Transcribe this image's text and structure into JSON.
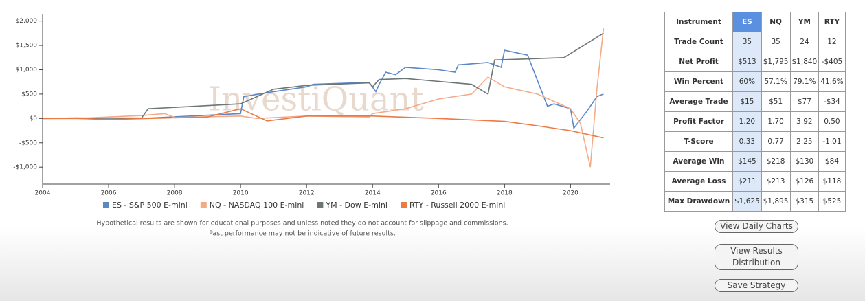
{
  "chart_data": {
    "type": "line",
    "watermark": "InvestiQuant",
    "xlim": [
      2004,
      2021.2
    ],
    "ylim": [
      -1350,
      2150
    ],
    "xticks": [
      2004,
      2006,
      2008,
      2010,
      2012,
      2014,
      2016,
      2018,
      2020
    ],
    "yticks": [
      {
        "value": 2000,
        "label": "$2,000"
      },
      {
        "value": 1500,
        "label": "$1,500"
      },
      {
        "value": 1000,
        "label": "$1,000"
      },
      {
        "value": 500,
        "label": "$500"
      },
      {
        "value": 0,
        "label": "$0"
      },
      {
        "value": -500,
        "label": "-$500"
      },
      {
        "value": -1000,
        "label": "-$1,000"
      }
    ],
    "legend": "bottom",
    "series": [
      {
        "name": "ES - S&P 500 E-mini",
        "color": "#5b87c7",
        "x": [
          2004,
          2005,
          2007,
          2010,
          2010.1,
          2011,
          2012,
          2012.2,
          2013,
          2013.9,
          2014.1,
          2014.2,
          2014.4,
          2014.7,
          2015,
          2016,
          2016.5,
          2016.6,
          2017.5,
          2017.9,
          2018,
          2018.7,
          2019.3,
          2019.5,
          2020,
          2020.1,
          2020.5,
          2020.8,
          2021
        ],
        "y": [
          0,
          10,
          0,
          100,
          450,
          550,
          650,
          700,
          720,
          740,
          550,
          700,
          950,
          900,
          1050,
          1000,
          950,
          1100,
          1150,
          1050,
          1400,
          1300,
          250,
          300,
          200,
          -200,
          150,
          450,
          500
        ]
      },
      {
        "name": "NQ - NASDAQ 100 E-mini",
        "color": "#f5aa86",
        "x": [
          2004,
          2005,
          2007,
          2007.7,
          2008,
          2010,
          2010.5,
          2012,
          2013.9,
          2014,
          2015,
          2016,
          2017,
          2017.5,
          2018,
          2019,
          2020,
          2020.3,
          2020.6,
          2020.8,
          2021
        ],
        "y": [
          0,
          0,
          60,
          100,
          20,
          50,
          0,
          50,
          30,
          100,
          200,
          400,
          500,
          850,
          650,
          500,
          200,
          -100,
          -1000,
          600,
          1850
        ]
      },
      {
        "name": "YM - Dow E-mini",
        "color": "#6b7675",
        "x": [
          2004,
          2007,
          2007.2,
          2010,
          2011,
          2012,
          2013.9,
          2014,
          2014.2,
          2015,
          2017,
          2017.5,
          2017.7,
          2019.8,
          2021
        ],
        "y": [
          0,
          10,
          200,
          300,
          600,
          680,
          730,
          650,
          800,
          820,
          700,
          500,
          1200,
          1250,
          1750
        ]
      },
      {
        "name": "RTY - Russell 2000 E-mini",
        "color": "#ec7a44",
        "x": [
          2004,
          2005,
          2006,
          2009,
          2010,
          2010.8,
          2012,
          2014,
          2016,
          2018,
          2019,
          2020,
          2021
        ],
        "y": [
          0,
          0,
          -20,
          30,
          200,
          -50,
          50,
          50,
          0,
          -60,
          -150,
          -250,
          -400
        ]
      }
    ],
    "notes": [
      "Hypothetical results are shown for educational purposes and unless noted they do not account for slippage and commissions.",
      "Past performance may not be indicative of future results."
    ]
  },
  "table": {
    "header": [
      "Instrument",
      "ES",
      "NQ",
      "YM",
      "RTY"
    ],
    "rows": [
      [
        "Trade Count",
        "35",
        "35",
        "24",
        "12"
      ],
      [
        "Net Profit",
        "$513",
        "$1,795",
        "$1,840",
        "-$405"
      ],
      [
        "Win Percent",
        "60%",
        "57.1%",
        "79.1%",
        "41.6%"
      ],
      [
        "Average Trade",
        "$15",
        "$51",
        "$77",
        "-$34"
      ],
      [
        "Profit Factor",
        "1.20",
        "1.70",
        "3.92",
        "0.50"
      ],
      [
        "T-Score",
        "0.33",
        "0.77",
        "2.25",
        "-1.01"
      ],
      [
        "Average Win",
        "$145",
        "$218",
        "$130",
        "$84"
      ],
      [
        "Average Loss",
        "$211",
        "$213",
        "$126",
        "$118"
      ],
      [
        "Max Drawdown",
        "$1,625",
        "$1,895",
        "$315",
        "$525"
      ]
    ]
  },
  "buttons": [
    "View Daily Charts",
    "View Results Distribution",
    "Save Strategy"
  ]
}
